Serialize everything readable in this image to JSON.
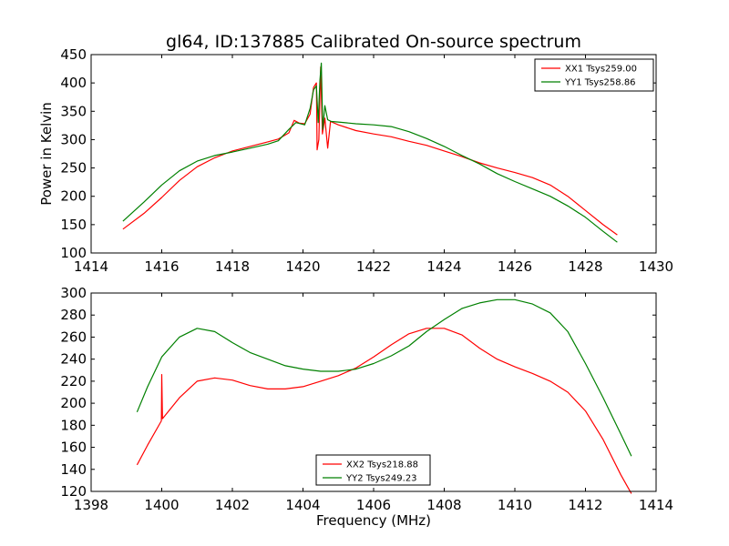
{
  "title": "gl64, ID:137885 Calibrated On-source spectrum",
  "xlabel": "Frequency (MHz)",
  "chart_data": [
    {
      "type": "line",
      "ylabel": "Power in Kelvin",
      "xlim": [
        1414,
        1430
      ],
      "ylim": [
        100,
        450
      ],
      "xticks": [
        1414,
        1416,
        1418,
        1420,
        1422,
        1424,
        1426,
        1428,
        1430
      ],
      "yticks": [
        100,
        150,
        200,
        250,
        300,
        350,
        400,
        450
      ],
      "legend": "top-right",
      "grid": false,
      "series": [
        {
          "name": "XX1 Tsys259.00",
          "color": "#ff0000",
          "points": [
            [
              1414.9,
              142
            ],
            [
              1415.5,
              170
            ],
            [
              1416,
              198
            ],
            [
              1416.5,
              228
            ],
            [
              1417,
              252
            ],
            [
              1417.5,
              268
            ],
            [
              1418,
              280
            ],
            [
              1418.5,
              288
            ],
            [
              1419,
              296
            ],
            [
              1419.3,
              301
            ],
            [
              1419.6,
              312
            ],
            [
              1419.75,
              334
            ],
            [
              1419.9,
              329
            ],
            [
              1420.05,
              328
            ],
            [
              1420.2,
              345
            ],
            [
              1420.3,
              392
            ],
            [
              1420.38,
              400
            ],
            [
              1420.4,
              282
            ],
            [
              1420.45,
              300
            ],
            [
              1420.5,
              428
            ],
            [
              1420.55,
              310
            ],
            [
              1420.62,
              338
            ],
            [
              1420.7,
              285
            ],
            [
              1420.78,
              332
            ],
            [
              1421,
              326
            ],
            [
              1421.5,
              316
            ],
            [
              1422,
              310
            ],
            [
              1422.5,
              305
            ],
            [
              1423,
              297
            ],
            [
              1423.5,
              290
            ],
            [
              1424,
              280
            ],
            [
              1424.5,
              270
            ],
            [
              1425,
              259
            ],
            [
              1425.5,
              250
            ],
            [
              1426,
              242
            ],
            [
              1426.5,
              233
            ],
            [
              1427,
              220
            ],
            [
              1427.5,
              200
            ],
            [
              1428,
              175
            ],
            [
              1428.5,
              150
            ],
            [
              1428.9,
              132
            ]
          ]
        },
        {
          "name": "YY1 Tsys258.86",
          "color": "#008000",
          "points": [
            [
              1414.9,
              156
            ],
            [
              1415.5,
              190
            ],
            [
              1416,
              220
            ],
            [
              1416.5,
              245
            ],
            [
              1417,
              262
            ],
            [
              1417.5,
              272
            ],
            [
              1418,
              278
            ],
            [
              1418.5,
              285
            ],
            [
              1419,
              292
            ],
            [
              1419.3,
              298
            ],
            [
              1419.6,
              318
            ],
            [
              1419.8,
              330
            ],
            [
              1420.05,
              326
            ],
            [
              1420.2,
              355
            ],
            [
              1420.3,
              388
            ],
            [
              1420.38,
              395
            ],
            [
              1420.43,
              330
            ],
            [
              1420.48,
              405
            ],
            [
              1420.52,
              435
            ],
            [
              1420.56,
              318
            ],
            [
              1420.62,
              360
            ],
            [
              1420.7,
              335
            ],
            [
              1420.8,
              332
            ],
            [
              1421,
              331
            ],
            [
              1421.5,
              328
            ],
            [
              1422,
              326
            ],
            [
              1422.5,
              323
            ],
            [
              1423,
              314
            ],
            [
              1423.5,
              302
            ],
            [
              1424,
              288
            ],
            [
              1424.5,
              272
            ],
            [
              1425,
              257
            ],
            [
              1425.5,
              240
            ],
            [
              1426,
              226
            ],
            [
              1426.5,
              213
            ],
            [
              1427,
              200
            ],
            [
              1427.5,
              183
            ],
            [
              1428,
              163
            ],
            [
              1428.5,
              138
            ],
            [
              1428.9,
              119
            ]
          ]
        }
      ]
    },
    {
      "type": "line",
      "ylabel": "",
      "xlim": [
        1398,
        1414
      ],
      "ylim": [
        120,
        300
      ],
      "xticks": [
        1398,
        1400,
        1402,
        1404,
        1406,
        1408,
        1410,
        1412,
        1414
      ],
      "yticks": [
        120,
        140,
        160,
        180,
        200,
        220,
        240,
        260,
        280,
        300
      ],
      "legend": "bottom-center",
      "grid": false,
      "series": [
        {
          "name": "XX2 Tsys218.88",
          "color": "#ff0000",
          "points": [
            [
              1399.3,
              144
            ],
            [
              1399.6,
              162
            ],
            [
              1399.99,
              184
            ],
            [
              1400.0,
              226
            ],
            [
              1400.02,
              186
            ],
            [
              1400.5,
              205
            ],
            [
              1401,
              220
            ],
            [
              1401.5,
              223
            ],
            [
              1402,
              221
            ],
            [
              1402.5,
              216
            ],
            [
              1403,
              213
            ],
            [
              1403.5,
              213
            ],
            [
              1404,
              215
            ],
            [
              1404.5,
              220
            ],
            [
              1405,
              225
            ],
            [
              1405.5,
              232
            ],
            [
              1406,
              242
            ],
            [
              1406.5,
              253
            ],
            [
              1407,
              263
            ],
            [
              1407.5,
              268
            ],
            [
              1408,
              268
            ],
            [
              1408.5,
              262
            ],
            [
              1409,
              250
            ],
            [
              1409.5,
              240
            ],
            [
              1410,
              233
            ],
            [
              1410.5,
              227
            ],
            [
              1411,
              220
            ],
            [
              1411.5,
              210
            ],
            [
              1412,
              193
            ],
            [
              1412.5,
              167
            ],
            [
              1413,
              135
            ],
            [
              1413.3,
              118
            ]
          ]
        },
        {
          "name": "YY2 Tsys249.23",
          "color": "#008000",
          "points": [
            [
              1399.3,
              192
            ],
            [
              1399.6,
              215
            ],
            [
              1400,
              242
            ],
            [
              1400.5,
              260
            ],
            [
              1401,
              268
            ],
            [
              1401.5,
              265
            ],
            [
              1402,
              255
            ],
            [
              1402.5,
              246
            ],
            [
              1403,
              240
            ],
            [
              1403.5,
              234
            ],
            [
              1404,
              231
            ],
            [
              1404.5,
              229
            ],
            [
              1405,
              229
            ],
            [
              1405.5,
              231
            ],
            [
              1406,
              236
            ],
            [
              1406.5,
              243
            ],
            [
              1407,
              252
            ],
            [
              1407.5,
              265
            ],
            [
              1408,
              276
            ],
            [
              1408.5,
              286
            ],
            [
              1409,
              291
            ],
            [
              1409.5,
              294
            ],
            [
              1410,
              294
            ],
            [
              1410.5,
              290
            ],
            [
              1411,
              282
            ],
            [
              1411.5,
              265
            ],
            [
              1412,
              236
            ],
            [
              1412.5,
              205
            ],
            [
              1413,
              172
            ],
            [
              1413.3,
              152
            ]
          ]
        }
      ]
    }
  ]
}
